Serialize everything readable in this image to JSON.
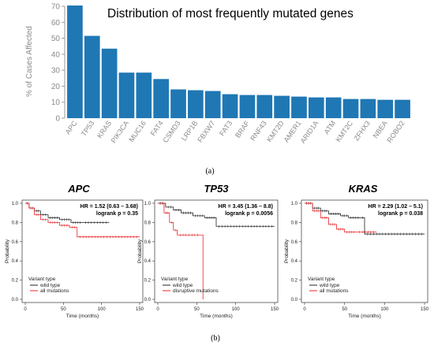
{
  "chart_data": [
    {
      "type": "bar",
      "panel_label": "(a)",
      "title": "Distribution of most frequently mutated genes",
      "xlabel": "",
      "ylabel": "% of Cases Affected",
      "ylim": [
        0,
        70
      ],
      "yticks": [
        0,
        10,
        20,
        30,
        40,
        50,
        60,
        70
      ],
      "color": "#1F77B4",
      "grid": false,
      "categories": [
        "APC",
        "TP53",
        "KRAS",
        "PIK3CA",
        "MUC16",
        "FAT4",
        "CSMD3",
        "LRP1B",
        "FBXW7",
        "FAT3",
        "BRAF",
        "RNF43",
        "KMT2D",
        "AMER1",
        "ARID1A",
        "ATM",
        "KMT2C",
        "ZFHX3",
        "NBEA",
        "ROBO2"
      ],
      "values": [
        70.5,
        51.5,
        43.5,
        28.5,
        28.5,
        24.5,
        18,
        17.5,
        17,
        15,
        14.5,
        14.5,
        14,
        13.5,
        13,
        13,
        12,
        12,
        11.5,
        11.5
      ]
    },
    {
      "type": "line",
      "panel_label": "(b)",
      "title": "APC",
      "hr_text": "HR = 1.52 (0.63 – 3.68)",
      "logrank_text": "logrank p = 0.35",
      "xlabel": "Time (months)",
      "ylabel": "Probability",
      "xlim": [
        0,
        150
      ],
      "ylim": [
        0,
        1
      ],
      "xticks": [
        0,
        50,
        100,
        150
      ],
      "yticks": [
        "0.0",
        "0.2",
        "0.4",
        "0.6",
        "0.8",
        "1.0"
      ],
      "legend_title": "Variant type",
      "legend_position": "bottom-left",
      "series": [
        {
          "name": "wild type",
          "color": "#222222",
          "x": [
            0,
            5,
            12,
            20,
            30,
            45,
            60,
            75,
            110
          ],
          "y": [
            1.0,
            0.95,
            0.92,
            0.88,
            0.85,
            0.83,
            0.8,
            0.8,
            0.8
          ]
        },
        {
          "name": "all mutations",
          "color": "#E8262A",
          "x": [
            0,
            5,
            12,
            20,
            30,
            45,
            58,
            68,
            150
          ],
          "y": [
            1.0,
            0.95,
            0.88,
            0.83,
            0.8,
            0.77,
            0.75,
            0.65,
            0.65
          ]
        }
      ]
    },
    {
      "type": "line",
      "title": "TP53",
      "hr_text": "HR = 3.45 (1.36 – 8.8)",
      "logrank_text": "logrank p = 0.0056",
      "xlabel": "Time (months)",
      "ylabel": "Probability",
      "xlim": [
        0,
        150
      ],
      "ylim": [
        0,
        1
      ],
      "xticks": [
        0,
        50,
        100,
        150
      ],
      "yticks": [
        "0.0",
        "0.2",
        "0.4",
        "0.6",
        "0.8",
        "1.0"
      ],
      "legend_title": "Variant type",
      "legend_position": "bottom-left",
      "series": [
        {
          "name": "wild type",
          "color": "#222222",
          "x": [
            0,
            10,
            20,
            30,
            45,
            60,
            75,
            150
          ],
          "y": [
            1.0,
            0.96,
            0.93,
            0.9,
            0.87,
            0.85,
            0.76,
            0.76
          ]
        },
        {
          "name": "disruptive mutations",
          "color": "#E8262A",
          "x": [
            0,
            8,
            15,
            20,
            25,
            55,
            58
          ],
          "y": [
            1.0,
            0.9,
            0.8,
            0.72,
            0.67,
            0.67,
            0.0
          ]
        }
      ]
    },
    {
      "type": "line",
      "title": "KRAS",
      "hr_text": "HR = 2.29 (1.02 – 5.1)",
      "logrank_text": "logrank p = 0.038",
      "xlabel": "Time (months)",
      "ylabel": "Probability",
      "xlim": [
        0,
        150
      ],
      "ylim": [
        0,
        1
      ],
      "xticks": [
        0,
        50,
        100,
        150
      ],
      "yticks": [
        "0.0",
        "0.2",
        "0.4",
        "0.6",
        "0.8",
        "1.0"
      ],
      "legend_title": "Variant type",
      "legend_position": "bottom-left",
      "series": [
        {
          "name": "wild type",
          "color": "#222222",
          "x": [
            0,
            10,
            20,
            30,
            45,
            55,
            70,
            75,
            150
          ],
          "y": [
            1.0,
            0.95,
            0.92,
            0.89,
            0.87,
            0.85,
            0.85,
            0.68,
            0.68
          ]
        },
        {
          "name": "all mutations",
          "color": "#E8262A",
          "x": [
            0,
            10,
            20,
            30,
            40,
            50,
            65,
            90
          ],
          "y": [
            1.0,
            0.92,
            0.85,
            0.78,
            0.73,
            0.7,
            0.7,
            0.7
          ]
        }
      ]
    }
  ]
}
